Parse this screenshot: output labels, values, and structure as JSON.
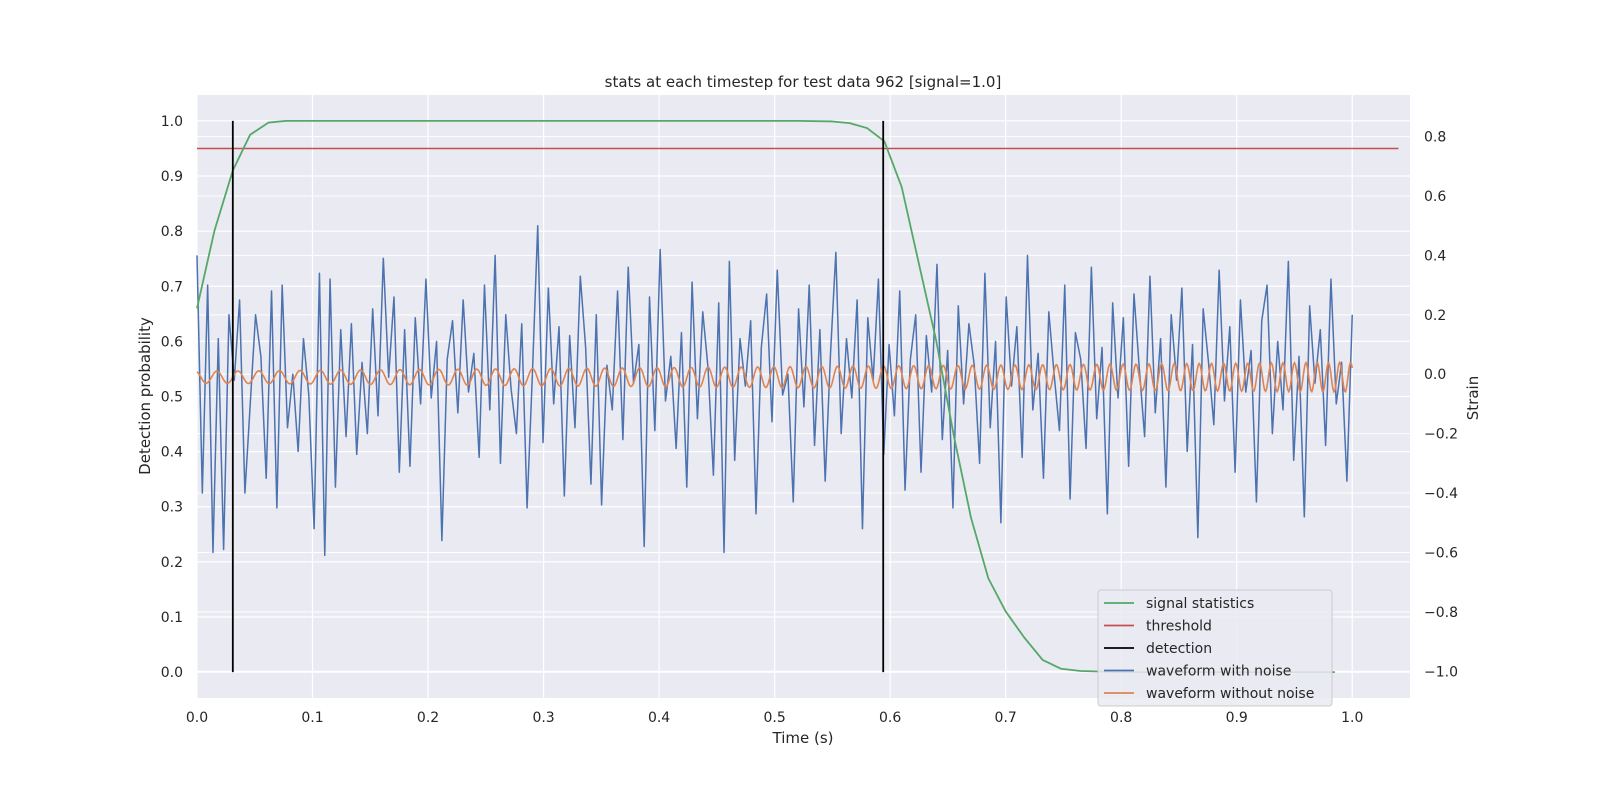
{
  "chart_data": {
    "type": "line",
    "title": "stats at each timestep for test data 962 [signal=1.0]",
    "xlabel": "Time (s)",
    "ylabel_left": "Detection probability",
    "ylabel_right": "Strain",
    "xlim": [
      0.0,
      1.05
    ],
    "ylim_left": [
      -0.047,
      1.047
    ],
    "ylim_right": [
      -1.09,
      0.94
    ],
    "x_ticks": [
      "0.0",
      "0.1",
      "0.2",
      "0.3",
      "0.4",
      "0.5",
      "0.6",
      "0.7",
      "0.8",
      "0.9",
      "1.0"
    ],
    "y_left_ticks": [
      "0.0",
      "0.1",
      "0.2",
      "0.3",
      "0.4",
      "0.5",
      "0.6",
      "0.7",
      "0.8",
      "0.9",
      "1.0"
    ],
    "y_right_ticks": [
      "−1.0",
      "−0.8",
      "−0.6",
      "−0.4",
      "−0.2",
      "0.0",
      "0.2",
      "0.4",
      "0.6",
      "0.8"
    ],
    "grid": true,
    "legend_position": "lower right",
    "colors": {
      "signal_statistics": "#55a868",
      "threshold": "#c44e52",
      "detection": "#000000",
      "waveform_with_noise": "#4c72b0",
      "waveform_without_noise": "#dd8452",
      "axes_background": "#eaeaf2",
      "grid": "#ffffff"
    },
    "legend": [
      {
        "label": "signal statistics",
        "color": "#55a868"
      },
      {
        "label": "threshold",
        "color": "#c44e52"
      },
      {
        "label": "detection",
        "color": "#000000"
      },
      {
        "label": "waveform with noise",
        "color": "#4c72b0"
      },
      {
        "label": "waveform without noise",
        "color": "#dd8452"
      }
    ],
    "series": [
      {
        "name": "signal statistics",
        "axis": "left",
        "x": [
          0.0,
          0.015,
          0.031,
          0.046,
          0.062,
          0.077,
          0.092,
          0.15,
          0.3,
          0.45,
          0.52,
          0.55,
          0.565,
          0.58,
          0.595,
          0.61,
          0.625,
          0.64,
          0.655,
          0.67,
          0.685,
          0.7,
          0.716,
          0.732,
          0.748,
          0.765,
          0.8,
          0.9,
          0.985
        ],
        "y": [
          0.66,
          0.8,
          0.91,
          0.975,
          0.997,
          1.0,
          1.0,
          1.0,
          1.0,
          1.0,
          1.0,
          0.999,
          0.996,
          0.987,
          0.963,
          0.88,
          0.74,
          0.6,
          0.43,
          0.28,
          0.17,
          0.11,
          0.063,
          0.022,
          0.006,
          0.002,
          0.0,
          0.0,
          0.0
        ]
      },
      {
        "name": "threshold",
        "axis": "left",
        "x": [
          0.0,
          1.04
        ],
        "y": [
          0.95,
          0.95
        ]
      },
      {
        "name": "detection",
        "axis": "left",
        "segments": [
          {
            "x": 0.031,
            "y": [
              0.0,
              1.0
            ]
          },
          {
            "x": 0.594,
            "y": [
              0.0,
              1.0
            ]
          }
        ]
      },
      {
        "name": "waveform with noise",
        "axis": "right",
        "x_range": [
          0.0,
          1.0
        ],
        "y": [
          0.4,
          -0.4,
          0.3,
          -0.6,
          0.12,
          -0.59,
          0.2,
          -0.02,
          0.25,
          -0.4,
          -0.1,
          0.2,
          0.06,
          -0.35,
          0.28,
          -0.45,
          0.3,
          -0.18,
          0.0,
          -0.26,
          0.12,
          -0.07,
          -0.52,
          0.34,
          -0.61,
          0.32,
          -0.38,
          0.15,
          -0.21,
          0.17,
          -0.27,
          0.04,
          -0.2,
          0.22,
          -0.14,
          0.39,
          -0.01,
          0.26,
          -0.33,
          0.15,
          -0.31,
          0.19,
          -0.1,
          0.32,
          -0.08,
          0.11,
          -0.56,
          0.05,
          0.18,
          -0.13,
          0.25,
          -0.06,
          0.07,
          -0.28,
          0.3,
          -0.12,
          0.4,
          -0.3,
          0.2,
          -0.05,
          -0.2,
          0.17,
          -0.45,
          0.0,
          0.5,
          -0.23,
          0.29,
          -0.1,
          0.16,
          -0.41,
          0.13,
          -0.18,
          0.33,
          0.09,
          -0.37,
          0.2,
          -0.44,
          0.03,
          -0.12,
          0.28,
          -0.22,
          0.36,
          -0.03,
          0.1,
          -0.58,
          0.26,
          -0.19,
          0.42,
          -0.09,
          0.06,
          -0.25,
          0.14,
          -0.38,
          0.31,
          -0.15,
          0.21,
          0.02,
          -0.34,
          0.24,
          -0.6,
          0.38,
          -0.29,
          0.12,
          -0.04,
          0.18,
          -0.47,
          0.09,
          0.27,
          -0.16,
          0.35,
          -0.07,
          0.0,
          -0.43,
          0.22,
          -0.11,
          0.3,
          -0.24,
          0.15,
          -0.36,
          0.07,
          0.41,
          -0.2,
          0.12,
          -0.08,
          0.25,
          -0.52,
          0.19,
          -0.02,
          0.32,
          -0.27,
          0.1,
          -0.14,
          0.28,
          -0.39,
          0.05,
          0.2,
          -0.33,
          0.13,
          -0.06,
          0.37,
          -0.22,
          0.08,
          -0.45,
          0.23,
          -0.1,
          0.17,
          0.03,
          -0.3,
          0.34,
          -0.18,
          0.11,
          -0.5,
          0.26,
          -0.04,
          0.16,
          -0.28,
          0.4,
          -0.12,
          0.07,
          -0.35,
          0.21,
          0.0,
          -0.19,
          0.3,
          -0.42,
          0.14,
          0.05,
          -0.25,
          0.36,
          -0.15,
          0.09,
          -0.47,
          0.24,
          -0.08,
          0.19,
          -0.31,
          0.27,
          0.02,
          -0.21,
          0.33,
          -0.13,
          0.12,
          -0.38,
          0.2,
          -0.02,
          0.29,
          -0.26,
          0.1,
          -0.55,
          0.22,
          0.04,
          -0.17,
          0.35,
          -0.09,
          0.16,
          -0.33,
          0.25,
          -0.06,
          0.08,
          -0.43,
          0.18,
          0.3,
          -0.2,
          0.11,
          -0.12,
          0.38,
          -0.29,
          0.06,
          -0.48,
          0.23,
          -0.03,
          0.15,
          -0.24,
          0.32,
          -0.1,
          0.04,
          -0.36,
          0.2
        ]
      },
      {
        "name": "waveform without noise",
        "axis": "right",
        "x_range": [
          0.0,
          1.0
        ],
        "amplitude_start": 0.02,
        "amplitude_end": 0.05,
        "cycles_start_period": 0.0185,
        "cycles_end_period": 0.0095
      }
    ]
  }
}
